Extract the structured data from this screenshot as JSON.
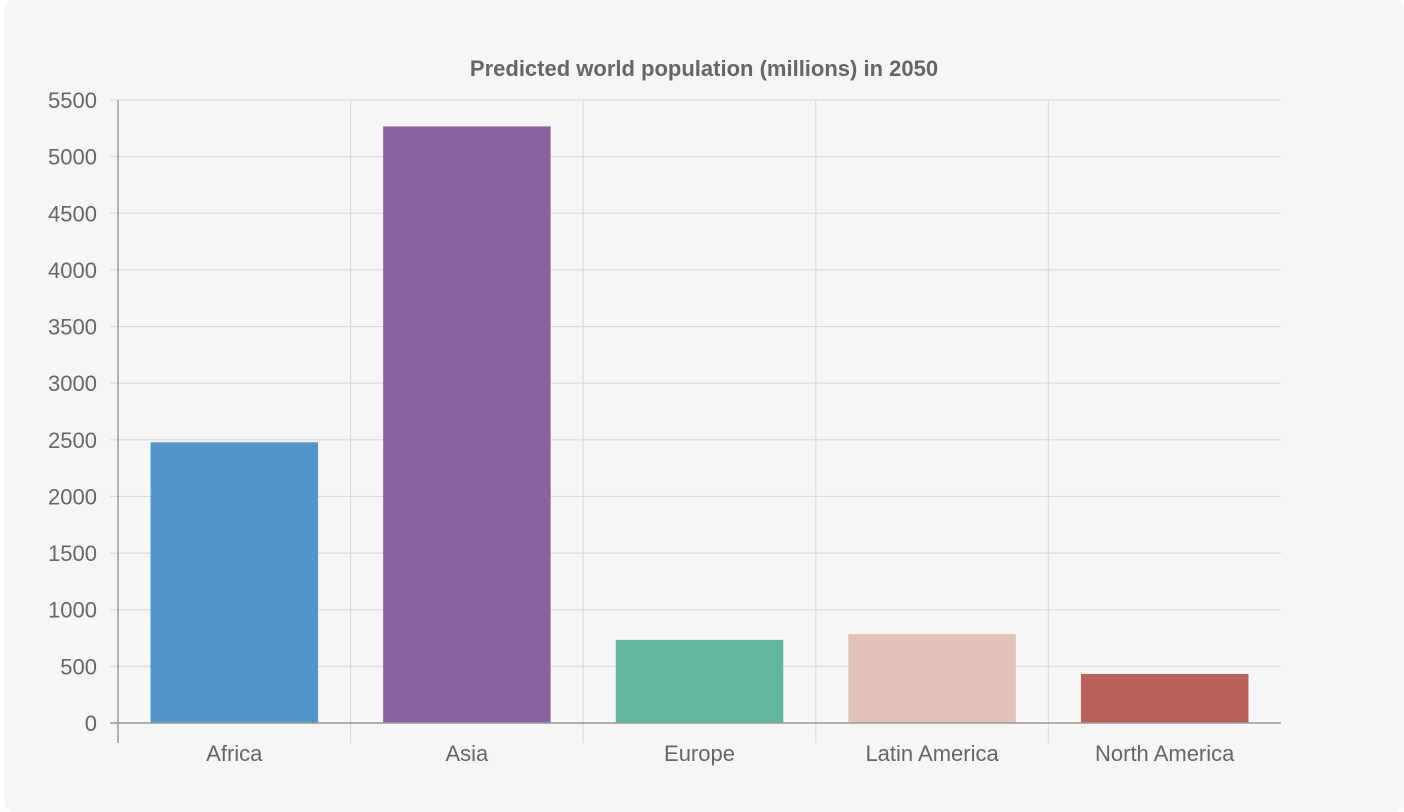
{
  "chart_data": {
    "type": "bar",
    "title": "Predicted world population (millions) in 2050",
    "xlabel": "",
    "ylabel": "",
    "categories": [
      "Africa",
      "Asia",
      "Europe",
      "Latin America",
      "North America"
    ],
    "values": [
      2478,
      5267,
      734,
      784,
      433
    ],
    "colors": [
      "#5195c9",
      "#8963a0",
      "#62b6a0",
      "#e2c3ba",
      "#b96157"
    ],
    "ylim": [
      0,
      5500
    ],
    "yticks": [
      0,
      500,
      1000,
      1500,
      2000,
      2500,
      3000,
      3500,
      4000,
      4500,
      5000,
      5500
    ],
    "grid": true,
    "legend": "none"
  }
}
